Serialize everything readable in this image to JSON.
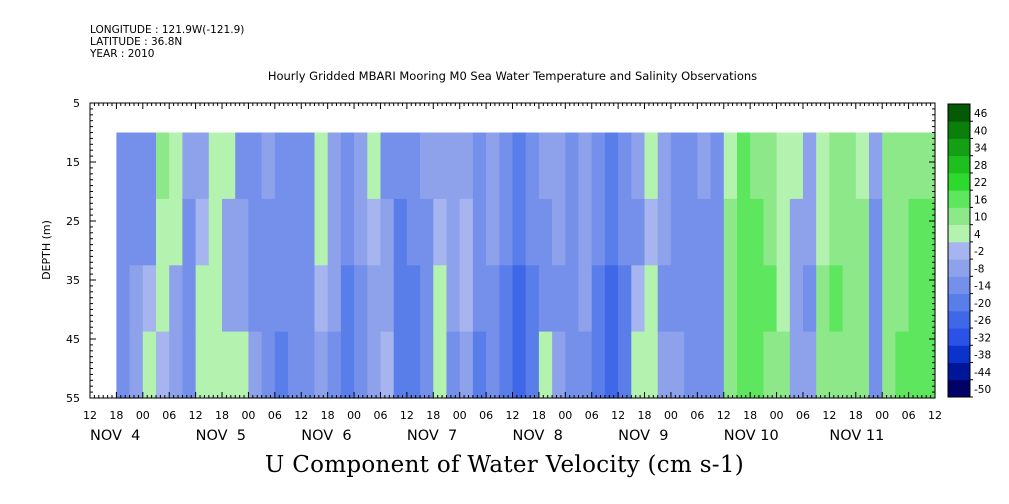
{
  "header": {
    "longitude": "LONGITUDE : 121.9W(-121.9)",
    "latitude": "LATITUDE : 36.8N",
    "year": "YEAR : 2010",
    "title": "Hourly Gridded MBARI Mooring M0 Sea Water Temperature and Salinity Observations"
  },
  "footer_title": "U Component of Water Velocity (cm s-1)",
  "chart_data": {
    "type": "heatmap",
    "title": "Hourly Gridded MBARI Mooring M0 Sea Water Temperature and Salinity Observations",
    "variable": "U Component of Water Velocity (cm s-1)",
    "ylabel": "DEPTH (m)",
    "yticks": [
      5,
      15,
      25,
      35,
      45,
      55
    ],
    "ylim": [
      55,
      5
    ],
    "data_depth_range": [
      10,
      55
    ],
    "x_hour_labels": [
      "12",
      "18",
      "00",
      "06",
      "12",
      "18",
      "00",
      "06",
      "12",
      "18",
      "00",
      "06",
      "12",
      "18",
      "00",
      "06",
      "12",
      "18",
      "00",
      "06",
      "12",
      "18",
      "00",
      "06",
      "12",
      "18",
      "00",
      "06",
      "12",
      "18",
      "00",
      "06",
      "12"
    ],
    "x_day_labels": [
      "NOV  4",
      "NOV  5",
      "NOV  6",
      "NOV  7",
      "NOV  8",
      "NOV  9",
      "NOV 10",
      "NOV 11"
    ],
    "x_range_hours": [
      0,
      192
    ],
    "data_start_hour": 6,
    "colorbar": {
      "levels": [
        -50,
        -44,
        -38,
        -32,
        -26,
        -20,
        -14,
        -8,
        -2,
        4,
        10,
        16,
        22,
        28,
        34,
        40,
        46
      ],
      "labels": [
        "46",
        "40",
        "34",
        "28",
        "22",
        "16",
        "10",
        "4",
        "-2",
        "-8",
        "-14",
        "-20",
        "-26",
        "-32",
        "-38",
        "-44",
        "-50"
      ],
      "colors": [
        "#000066",
        "#001699",
        "#0a33cc",
        "#2a52e6",
        "#3f68e8",
        "#5a7ee9",
        "#7590ea",
        "#8ea2ec",
        "#a6b4ef",
        "#b4f2b0",
        "#8de88a",
        "#5ee65e",
        "#2dd92d",
        "#1fbf1f",
        "#14a014",
        "#0b7f0b",
        "#045a04"
      ]
    },
    "profile": [
      {
        "h": 6,
        "v": [
          -9,
          -10,
          -11,
          -12
        ]
      },
      {
        "h": 9,
        "v": [
          -12,
          -12,
          -8,
          -6
        ]
      },
      {
        "h": 12,
        "v": [
          -14,
          -10,
          2,
          4
        ]
      },
      {
        "h": 15,
        "v": [
          10,
          8,
          6,
          2
        ]
      },
      {
        "h": 18,
        "v": [
          5,
          4,
          -4,
          -8
        ]
      },
      {
        "h": 21,
        "v": [
          -8,
          -10,
          -12,
          -12
        ]
      },
      {
        "h": 24,
        "v": [
          -5,
          -2,
          6,
          8
        ]
      },
      {
        "h": 27,
        "v": [
          6,
          8,
          8,
          6
        ]
      },
      {
        "h": 30,
        "v": [
          4,
          -5,
          -6,
          4
        ]
      },
      {
        "h": 33,
        "v": [
          -10,
          -8,
          -4,
          6
        ]
      },
      {
        "h": 36,
        "v": [
          -14,
          -12,
          -10,
          -4
        ]
      },
      {
        "h": 39,
        "v": [
          -8,
          -9,
          -10,
          -12
        ]
      },
      {
        "h": 42,
        "v": [
          -10,
          -12,
          -14,
          -16
        ]
      },
      {
        "h": 45,
        "v": [
          -9,
          -10,
          -12,
          -14
        ]
      },
      {
        "h": 48,
        "v": [
          -12,
          -12,
          -14,
          -14
        ]
      },
      {
        "h": 51,
        "v": [
          6,
          4,
          0,
          -6
        ]
      },
      {
        "h": 54,
        "v": [
          -8,
          -6,
          -8,
          -10
        ]
      },
      {
        "h": 57,
        "v": [
          -12,
          -14,
          -16,
          -18
        ]
      },
      {
        "h": 60,
        "v": [
          -6,
          -8,
          -10,
          -12
        ]
      },
      {
        "h": 63,
        "v": [
          4,
          2,
          -4,
          -6
        ]
      },
      {
        "h": 66,
        "v": [
          -10,
          -6,
          -4,
          -2
        ]
      },
      {
        "h": 69,
        "v": [
          -14,
          -16,
          -18,
          -16
        ]
      },
      {
        "h": 72,
        "v": [
          -12,
          -14,
          -16,
          -18
        ]
      },
      {
        "h": 75,
        "v": [
          -8,
          -10,
          -12,
          -14
        ]
      },
      {
        "h": 78,
        "v": [
          -6,
          -2,
          4,
          6
        ]
      },
      {
        "h": 81,
        "v": [
          -4,
          -6,
          -8,
          -10
        ]
      },
      {
        "h": 84,
        "v": [
          -4,
          -2,
          0,
          -4
        ]
      },
      {
        "h": 87,
        "v": [
          -10,
          -12,
          -14,
          -16
        ]
      },
      {
        "h": 90,
        "v": [
          -6,
          -8,
          -10,
          -12
        ]
      },
      {
        "h": 93,
        "v": [
          -12,
          -14,
          -18,
          -20
        ]
      },
      {
        "h": 96,
        "v": [
          -18,
          -20,
          -22,
          -22
        ]
      },
      {
        "h": 99,
        "v": [
          -10,
          -12,
          -16,
          -18
        ]
      },
      {
        "h": 102,
        "v": [
          -8,
          -10,
          -12,
          6
        ]
      },
      {
        "h": 105,
        "v": [
          -6,
          -8,
          -10,
          -8
        ]
      },
      {
        "h": 108,
        "v": [
          -10,
          -10,
          -12,
          -12
        ]
      },
      {
        "h": 111,
        "v": [
          -4,
          -6,
          -8,
          -10
        ]
      },
      {
        "h": 114,
        "v": [
          -12,
          -14,
          -16,
          -16
        ]
      },
      {
        "h": 117,
        "v": [
          -18,
          -20,
          -22,
          -22
        ]
      },
      {
        "h": 120,
        "v": [
          -12,
          -14,
          -16,
          -18
        ]
      },
      {
        "h": 123,
        "v": [
          -8,
          -10,
          2,
          8
        ]
      },
      {
        "h": 126,
        "v": [
          4,
          2,
          4,
          8
        ]
      },
      {
        "h": 129,
        "v": [
          -6,
          -8,
          -10,
          -6
        ]
      },
      {
        "h": 132,
        "v": [
          -12,
          -12,
          -10,
          -8
        ]
      },
      {
        "h": 135,
        "v": [
          -10,
          -12,
          -14,
          -14
        ]
      },
      {
        "h": 138,
        "v": [
          -8,
          -10,
          -12,
          -10
        ]
      },
      {
        "h": 141,
        "v": [
          -10,
          -12,
          -14,
          -12
        ]
      },
      {
        "h": 144,
        "v": [
          8,
          12,
          14,
          12
        ]
      },
      {
        "h": 147,
        "v": [
          16,
          18,
          20,
          18
        ]
      },
      {
        "h": 150,
        "v": [
          14,
          16,
          18,
          16
        ]
      },
      {
        "h": 153,
        "v": [
          10,
          14,
          16,
          14
        ]
      },
      {
        "h": 156,
        "v": [
          4,
          6,
          8,
          10
        ]
      },
      {
        "h": 159,
        "v": [
          4,
          -4,
          -6,
          -8
        ]
      },
      {
        "h": 162,
        "v": [
          -6,
          -8,
          -10,
          -8
        ]
      },
      {
        "h": 165,
        "v": [
          6,
          8,
          10,
          12
        ]
      },
      {
        "h": 168,
        "v": [
          12,
          14,
          16,
          14
        ]
      },
      {
        "h": 171,
        "v": [
          10,
          12,
          14,
          10
        ]
      },
      {
        "h": 174,
        "v": [
          8,
          10,
          12,
          14
        ]
      },
      {
        "h": 177,
        "v": [
          -8,
          -10,
          -12,
          -14
        ]
      },
      {
        "h": 180,
        "v": [
          12,
          14,
          12,
          10
        ]
      },
      {
        "h": 183,
        "v": [
          10,
          12,
          14,
          16
        ]
      },
      {
        "h": 186,
        "v": [
          14,
          16,
          18,
          20
        ]
      }
    ]
  }
}
